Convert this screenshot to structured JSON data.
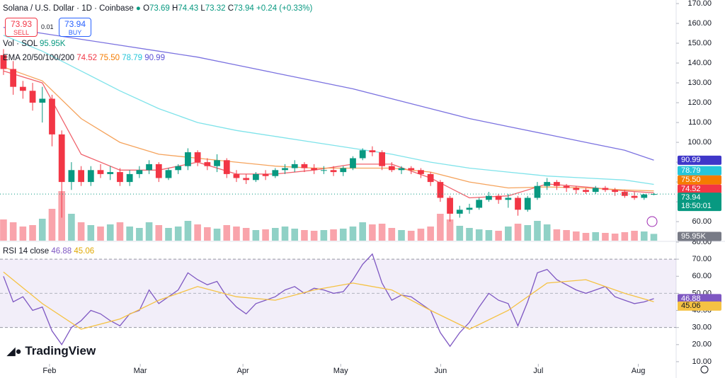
{
  "header": {
    "symbol": "Solana / U.S. Dollar · 1D · Coinbase",
    "o_label": "O",
    "o": "73.69",
    "h_label": "H",
    "h": "74.43",
    "l_label": "L",
    "l": "73.32",
    "c_label": "C",
    "c": "73.94",
    "change": "+0.24 (+0.33%)"
  },
  "trade": {
    "sell_price": "73.93",
    "sell": "SELL",
    "spread": "0.01",
    "buy_price": "73.94",
    "buy": "BUY"
  },
  "countdown": "18:50:01",
  "logo": "TradingView",
  "chart_data": [
    {
      "type": "candlestick",
      "up_color": "#089981",
      "down_color": "#f23645",
      "categories": [
        null,
        null,
        null,
        null,
        null,
        null,
        null,
        null,
        null,
        null,
        null,
        null,
        null,
        null,
        null,
        null,
        null,
        null,
        null,
        null,
        null,
        null,
        null,
        null,
        null,
        null,
        null,
        null,
        null,
        null,
        null,
        null,
        null,
        null,
        null,
        null,
        null,
        null,
        null,
        null,
        null,
        null,
        null,
        null,
        null,
        null,
        null,
        null,
        null,
        null,
        null,
        null,
        null,
        null,
        null,
        null,
        null,
        null,
        null,
        null,
        null,
        null,
        null,
        null,
        null,
        null,
        null,
        null
      ],
      "ohlc": [
        [
          144,
          147,
          134,
          137
        ],
        [
          137,
          141,
          124,
          128
        ],
        [
          128,
          131,
          122,
          126
        ],
        [
          126,
          130,
          116,
          120
        ],
        [
          120,
          128,
          110,
          122
        ],
        [
          122,
          124,
          98,
          104
        ],
        [
          104,
          106,
          62,
          80
        ],
        [
          80,
          90,
          76,
          86
        ],
        [
          86,
          88,
          78,
          80
        ],
        [
          80,
          88,
          78,
          86
        ],
        [
          86,
          89,
          82,
          84
        ],
        [
          84,
          88,
          81,
          85
        ],
        [
          85,
          87,
          78,
          80
        ],
        [
          80,
          86,
          78,
          84
        ],
        [
          84,
          88,
          82,
          86
        ],
        [
          86,
          91,
          84,
          89
        ],
        [
          89,
          90,
          80,
          82
        ],
        [
          82,
          87,
          81,
          86
        ],
        [
          86,
          89,
          84,
          88
        ],
        [
          88,
          97,
          86,
          95
        ],
        [
          95,
          96,
          88,
          90
        ],
        [
          90,
          92,
          86,
          88
        ],
        [
          88,
          94,
          85,
          91
        ],
        [
          91,
          92,
          82,
          84
        ],
        [
          84,
          86,
          80,
          82
        ],
        [
          82,
          84,
          79,
          81
        ],
        [
          81,
          85,
          80,
          84
        ],
        [
          84,
          86,
          81,
          83
        ],
        [
          83,
          87,
          82,
          86
        ],
        [
          86,
          89,
          84,
          87
        ],
        [
          87,
          91,
          85,
          89
        ],
        [
          89,
          90,
          85,
          87
        ],
        [
          87,
          89,
          84,
          86
        ],
        [
          86,
          88,
          84,
          86
        ],
        [
          86,
          88,
          83,
          85
        ],
        [
          85,
          88,
          83,
          87
        ],
        [
          87,
          93,
          86,
          92
        ],
        [
          92,
          97,
          91,
          96
        ],
        [
          96,
          98,
          93,
          95
        ],
        [
          95,
          96,
          86,
          88
        ],
        [
          88,
          90,
          85,
          86
        ],
        [
          86,
          88,
          84,
          87
        ],
        [
          87,
          88,
          84,
          86
        ],
        [
          86,
          87,
          82,
          84
        ],
        [
          84,
          85,
          78,
          80
        ],
        [
          80,
          81,
          70,
          72
        ],
        [
          72,
          73,
          60,
          64
        ],
        [
          64,
          68,
          62,
          66
        ],
        [
          66,
          69,
          64,
          67
        ],
        [
          67,
          72,
          66,
          71
        ],
        [
          71,
          75,
          70,
          73
        ],
        [
          73,
          74,
          69,
          71
        ],
        [
          71,
          74,
          67,
          72
        ],
        [
          72,
          73,
          63,
          66
        ],
        [
          66,
          73,
          65,
          72
        ],
        [
          72,
          80,
          71,
          78
        ],
        [
          78,
          82,
          76,
          80
        ],
        [
          80,
          81,
          76,
          78
        ],
        [
          78,
          79,
          75,
          77
        ],
        [
          77,
          78,
          74,
          76
        ],
        [
          76,
          77,
          74,
          75
        ],
        [
          75,
          78,
          74,
          77
        ],
        [
          77,
          78,
          75,
          76
        ],
        [
          76,
          77,
          73,
          75
        ],
        [
          75,
          76,
          72,
          73
        ],
        [
          73,
          75,
          71,
          72
        ],
        [
          72,
          74,
          71,
          73.7
        ],
        [
          73.69,
          74.43,
          73.32,
          73.94
        ]
      ],
      "volume": {
        "name": "Vol · SOL",
        "value_label": "95.95K",
        "ylim": [
          0,
          1000
        ],
        "values": [
          300,
          260,
          200,
          220,
          310,
          450,
          700,
          380,
          260,
          220,
          200,
          230,
          260,
          200,
          180,
          260,
          220,
          180,
          200,
          280,
          230,
          190,
          170,
          220,
          200,
          180,
          150,
          160,
          180,
          200,
          170,
          150,
          140,
          150,
          160,
          170,
          200,
          260,
          230,
          240,
          180,
          150,
          140,
          170,
          200,
          380,
          300,
          210,
          180,
          160,
          150,
          140,
          200,
          240,
          220,
          280,
          230,
          160,
          150,
          130,
          110,
          120,
          110,
          100,
          120,
          140,
          130,
          95.95
        ]
      },
      "ema_title": "EMA 20/50/100/200",
      "series": [
        {
          "color": "#f0626c",
          "value_label": "74.52",
          "x": [
            0,
            4,
            8,
            12,
            16,
            20,
            24,
            28,
            32,
            36,
            40,
            44,
            48,
            52,
            56,
            60,
            64,
            67
          ],
          "values": [
            136,
            130,
            94,
            86,
            86,
            90,
            84,
            84,
            86,
            89,
            89,
            82,
            72,
            73,
            79,
            77.5,
            75.5,
            74.52
          ]
        },
        {
          "color": "#f5a35c",
          "value_label": "75.50",
          "x": [
            0,
            4,
            8,
            12,
            16,
            20,
            24,
            28,
            32,
            36,
            40,
            44,
            48,
            52,
            56,
            60,
            64,
            67
          ],
          "values": [
            138,
            131,
            112,
            100,
            94,
            92,
            90,
            88,
            87,
            87,
            87,
            85,
            80,
            77,
            77.5,
            77,
            76,
            75.5
          ]
        },
        {
          "color": "#7fe3ea",
          "value_label": "78.79",
          "x": [
            0,
            4,
            8,
            12,
            16,
            20,
            24,
            28,
            32,
            36,
            40,
            44,
            48,
            52,
            56,
            60,
            64,
            67
          ],
          "values": [
            154,
            146,
            136,
            126,
            117,
            110,
            106,
            103,
            100,
            97,
            94,
            90,
            87,
            85,
            83,
            82,
            81,
            78.79
          ]
        },
        {
          "color": "#7b72e0",
          "value_label": "90.99",
          "x": [
            0,
            4,
            8,
            12,
            16,
            20,
            24,
            28,
            32,
            36,
            40,
            44,
            48,
            52,
            56,
            60,
            64,
            67
          ],
          "values": [
            158,
            155,
            152,
            149,
            146,
            143,
            139,
            135,
            131,
            127,
            122,
            117,
            112,
            108,
            104,
            100,
            96,
            90.99
          ]
        }
      ],
      "ylim": [
        50.4,
        171.8
      ],
      "yticks": [
        {
          "value": 60,
          "label": "60.00"
        },
        {
          "value": 70,
          "label": "70.00"
        },
        {
          "value": 80,
          "label": "80.00"
        },
        {
          "value": 90,
          "label": "90.00"
        },
        {
          "value": 100,
          "label": "100.00"
        },
        {
          "value": 110,
          "label": "110.00"
        },
        {
          "value": 120,
          "label": "120.00"
        },
        {
          "value": 130,
          "label": "130.00"
        },
        {
          "value": 140,
          "label": "140.00"
        },
        {
          "value": 150,
          "label": "150.00"
        },
        {
          "value": 160,
          "label": "160.00"
        },
        {
          "value": 170,
          "label": "170.00"
        }
      ],
      "xlim": [
        -0.36,
        69.3
      ],
      "xticks": [
        {
          "value": 4.74,
          "label": "Feb"
        },
        {
          "value": 14.09,
          "label": "Mar"
        },
        {
          "value": 24.67,
          "label": "Apr"
        },
        {
          "value": 34.74,
          "label": "May"
        },
        {
          "value": 45.04,
          "label": "Jun"
        },
        {
          "value": 55.1,
          "label": "Jul"
        },
        {
          "value": 65.4,
          "label": "Aug"
        }
      ]
    },
    {
      "type": "line",
      "title": "RSI 14 close",
      "xlim": [
        -0.36,
        69.3
      ],
      "ylim": [
        6.25,
        80
      ],
      "band": [
        30,
        70
      ],
      "midline": 50,
      "yticks": [
        {
          "value": 10,
          "label": "10.00"
        },
        {
          "value": 20,
          "label": "20.00"
        },
        {
          "value": 30,
          "label": "30.00"
        },
        {
          "value": 40,
          "label": "40.00"
        },
        {
          "value": 50,
          "label": "50.00"
        },
        {
          "value": 60,
          "label": "60.00"
        },
        {
          "value": 70,
          "label": "70.00"
        },
        {
          "value": 80,
          "label": "80.00"
        }
      ],
      "series": [
        {
          "color": "#7e57c2",
          "value_label": "46.88",
          "values": [
            60,
            45,
            48,
            40,
            42,
            28,
            20,
            30,
            34,
            40,
            38,
            34,
            31,
            38,
            40,
            52,
            44,
            48,
            52,
            62,
            58,
            55,
            57,
            48,
            42,
            38,
            44,
            46,
            48,
            52,
            54,
            50,
            53,
            52,
            50,
            51,
            58,
            67,
            73,
            56,
            46,
            49,
            48,
            44,
            40,
            27,
            19,
            27,
            33,
            42,
            50,
            46,
            44,
            31,
            45,
            62,
            64,
            58,
            55,
            52,
            50,
            52,
            54,
            48,
            46,
            44,
            45,
            46.88
          ]
        },
        {
          "color": "#f5c243",
          "value_label": "45.06",
          "x": [
            0,
            4,
            8,
            12,
            16,
            20,
            24,
            28,
            32,
            36,
            40,
            44,
            48,
            52,
            56,
            60,
            64,
            67
          ],
          "values": [
            62.5,
            44,
            29,
            35,
            46,
            54,
            48,
            46,
            52,
            56,
            52,
            40,
            29,
            40,
            56,
            58,
            50,
            45.06
          ]
        }
      ]
    }
  ]
}
